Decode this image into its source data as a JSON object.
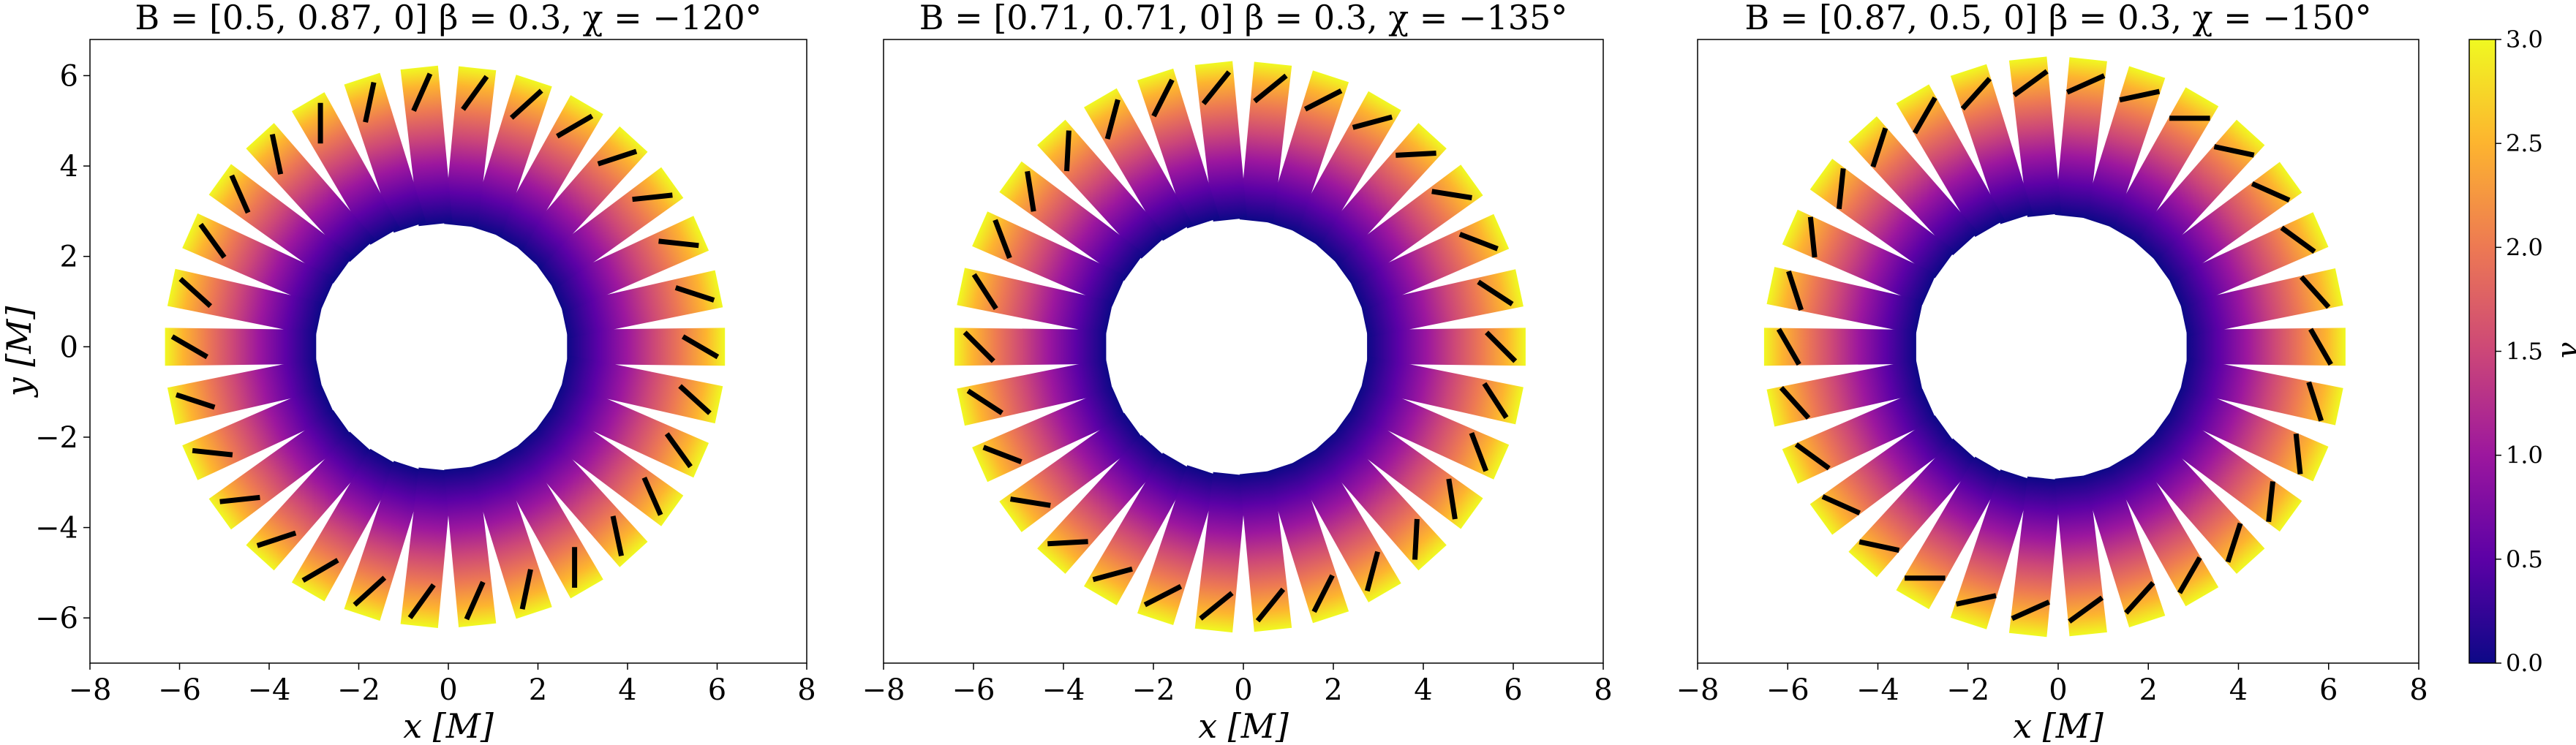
{
  "chart_data": [
    {
      "type": "polarization-map",
      "title": "B = [0.5, 0.87, 0] β = 0.3, χ = −120°",
      "xlabel": "x [M]",
      "ylabel": "y [M]",
      "xlim": [
        -8,
        8
      ],
      "ylim": [
        -7,
        6.8
      ],
      "xticks": [
        "−8",
        "−6",
        "−4",
        "−2",
        "0",
        "2",
        "4",
        "6",
        "8"
      ],
      "yticks": [
        "−6",
        "−4",
        "−2",
        "0",
        "2",
        "4",
        "6"
      ],
      "B": [
        0.5,
        0.87,
        0
      ],
      "beta": 0.3,
      "chi_deg": -120,
      "n_segments": 30,
      "ring_inner_radius": 2.7,
      "ring_outer_radius": 6.2,
      "compression_side": "left"
    },
    {
      "type": "polarization-map",
      "title": "B = [0.71, 0.71, 0] β = 0.3, χ = −135°",
      "xlabel": "x [M]",
      "ylabel": "",
      "xlim": [
        -8,
        8
      ],
      "ylim": [
        -7,
        6.8
      ],
      "xticks": [
        "−8",
        "−6",
        "−4",
        "−2",
        "0",
        "2",
        "4",
        "6",
        "8"
      ],
      "yticks": [],
      "B": [
        0.71,
        0.71,
        0
      ],
      "beta": 0.3,
      "chi_deg": -135,
      "n_segments": 30,
      "ring_inner_radius": 2.8,
      "ring_outer_radius": 6.3,
      "compression_side": "left"
    },
    {
      "type": "polarization-map",
      "title": "B = [0.87, 0.5, 0] β = 0.3, χ = −150°",
      "xlabel": "x [M]",
      "ylabel": "",
      "xlim": [
        -8,
        8
      ],
      "ylim": [
        -7,
        6.8
      ],
      "xticks": [
        "−8",
        "−6",
        "−4",
        "−2",
        "0",
        "2",
        "4",
        "6",
        "8"
      ],
      "yticks": [],
      "B": [
        0.87,
        0.5,
        0
      ],
      "beta": 0.3,
      "chi_deg": -150,
      "n_segments": 30,
      "ring_inner_radius": 2.9,
      "ring_outer_radius": 6.4,
      "compression_side": "left"
    }
  ],
  "colorbar": {
    "label": "γ",
    "range": [
      0,
      3
    ],
    "ticks": [
      "0.0",
      "0.5",
      "1.0",
      "1.5",
      "2.0",
      "2.5",
      "3.0"
    ],
    "colormap": "plasma",
    "stops": [
      "#0d0887",
      "#5c01a6",
      "#9c179e",
      "#cc4778",
      "#ed7953",
      "#fdb42f",
      "#f0f921"
    ]
  }
}
